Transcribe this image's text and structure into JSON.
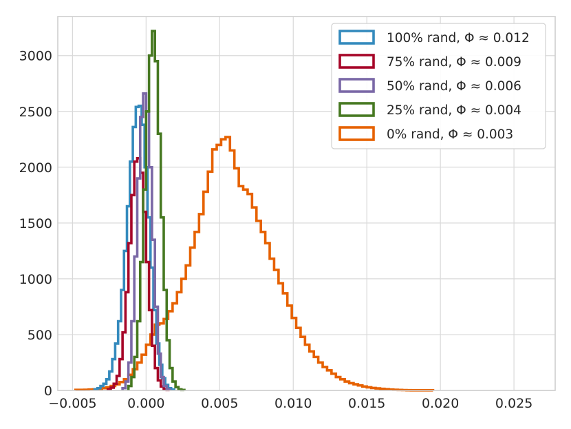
{
  "chart_data": {
    "type": "histogram",
    "title": "",
    "xlabel": "",
    "ylabel": "",
    "xlim": [
      -0.006,
      0.0278
    ],
    "ylim": [
      0,
      3350
    ],
    "xticks": [
      -0.005,
      0.0,
      0.005,
      0.01,
      0.015,
      0.02,
      0.025
    ],
    "xtick_labels": [
      "−0.005",
      "0.000",
      "0.005",
      "0.010",
      "0.015",
      "0.020",
      "0.025"
    ],
    "yticks": [
      0,
      500,
      1000,
      1500,
      2000,
      2500,
      3000
    ],
    "ytick_labels": [
      "0",
      "500",
      "1000",
      "1500",
      "2000",
      "2500",
      "3000"
    ],
    "grid": true,
    "legend_position": "top-right",
    "series": [
      {
        "name": "100% rand, Φ ≈ 0.012",
        "color": "#348ABD",
        "bin_start": -0.0035,
        "bin_width": 0.0002,
        "counts": [
          10,
          20,
          40,
          60,
          100,
          170,
          280,
          420,
          620,
          900,
          1250,
          1650,
          2050,
          2360,
          2540,
          2550,
          2380,
          2000,
          1550,
          1100,
          720,
          420,
          230,
          110,
          50,
          20,
          8
        ]
      },
      {
        "name": "75% rand, Φ ≈ 0.009",
        "color": "#A60628",
        "bin_start": -0.0026,
        "bin_width": 0.0002,
        "counts": [
          10,
          25,
          60,
          130,
          280,
          520,
          880,
          1320,
          1750,
          2050,
          2080,
          1950,
          1600,
          1150,
          720,
          400,
          200,
          90,
          35,
          12,
          4
        ]
      },
      {
        "name": "50% rand, Φ ≈ 0.006",
        "color": "#7A68A6",
        "bin_start": -0.0016,
        "bin_width": 0.0002,
        "counts": [
          20,
          80,
          250,
          620,
          1200,
          1900,
          2450,
          2660,
          2500,
          2000,
          1350,
          750,
          330,
          120,
          40,
          10
        ]
      },
      {
        "name": "25% rand, Φ ≈ 0.004",
        "color": "#467821",
        "bin_start": -0.0012,
        "bin_width": 0.0002,
        "counts": [
          40,
          120,
          300,
          620,
          1150,
          1800,
          2500,
          3000,
          3220,
          2950,
          2300,
          1550,
          900,
          450,
          200,
          80,
          30,
          10,
          4
        ]
      },
      {
        "name": "0% rand, Φ ≈ 0.003",
        "color": "#E66100",
        "bin_start": -0.0048,
        "bin_width": 0.0003,
        "counts": [
          5,
          5,
          6,
          8,
          10,
          14,
          20,
          28,
          40,
          55,
          75,
          100,
          140,
          190,
          250,
          320,
          410,
          500,
          590,
          600,
          640,
          710,
          780,
          880,
          1000,
          1120,
          1280,
          1420,
          1580,
          1780,
          1960,
          2160,
          2200,
          2250,
          2270,
          2150,
          1990,
          1830,
          1800,
          1760,
          1640,
          1520,
          1420,
          1320,
          1180,
          1080,
          960,
          870,
          760,
          650,
          560,
          480,
          410,
          350,
          300,
          250,
          210,
          180,
          150,
          120,
          100,
          80,
          65,
          55,
          45,
          35,
          28,
          22,
          18,
          14,
          11,
          8,
          6,
          4,
          3,
          2,
          1,
          1,
          1,
          1,
          1
        ]
      }
    ]
  }
}
